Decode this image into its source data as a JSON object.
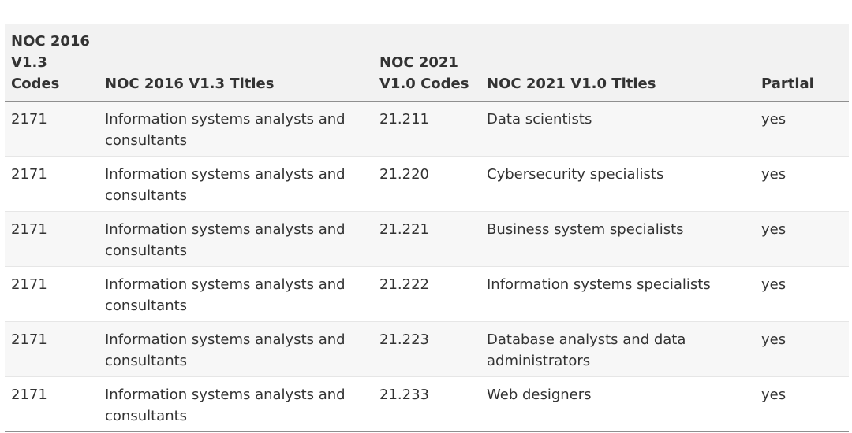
{
  "table": {
    "headers": {
      "col1_line1": "NOC 2016",
      "col1_line2": "V1.3 Codes",
      "col2": "NOC 2016 V1.3 Titles",
      "col3_line1": "NOC 2021",
      "col3_line2": "V1.0 Codes",
      "col4": "NOC 2021 V1.0 Titles",
      "col5": "Partial"
    },
    "rows": [
      {
        "noc2016_code": "2171",
        "noc2016_title": "Information systems analysts and consultants",
        "noc2021_code": "21.211",
        "noc2021_title": "Data scientists",
        "partial": "yes"
      },
      {
        "noc2016_code": "2171",
        "noc2016_title": "Information systems analysts and consultants",
        "noc2021_code": "21.220",
        "noc2021_title": "Cybersecurity specialists",
        "partial": "yes"
      },
      {
        "noc2016_code": "2171",
        "noc2016_title": "Information systems analysts and consultants",
        "noc2021_code": "21.221",
        "noc2021_title": "Business system specialists",
        "partial": "yes"
      },
      {
        "noc2016_code": "2171",
        "noc2016_title": "Information systems analysts and consultants",
        "noc2021_code": "21.222",
        "noc2021_title": "Information systems specialists",
        "partial": "yes"
      },
      {
        "noc2016_code": "2171",
        "noc2016_title": "Information systems analysts and consultants",
        "noc2021_code": "21.223",
        "noc2021_title": "Database analysts and data administrators",
        "partial": "yes"
      },
      {
        "noc2016_code": "2171",
        "noc2016_title": "Information systems analysts and consultants",
        "noc2021_code": "21.233",
        "noc2021_title": "Web designers",
        "partial": "yes"
      }
    ]
  }
}
